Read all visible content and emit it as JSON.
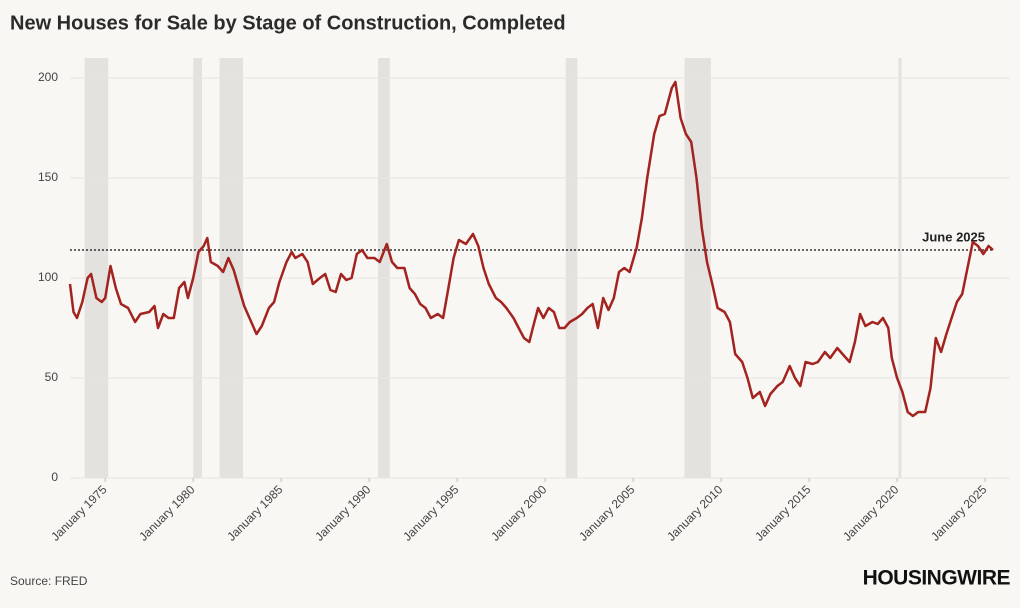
{
  "chart_data": {
    "type": "line",
    "title": "New Houses for Sale by Stage of Construction, Completed",
    "source": "Source: FRED",
    "logo": "HOUSINGWIRE",
    "color": "#a3231f",
    "grid": true,
    "shade_color": "#e4e2df",
    "xlim": [
      1973,
      2025.45
    ],
    "ylim": [
      0,
      210
    ],
    "yticks": [
      0,
      50,
      100,
      150,
      200
    ],
    "xticks": [
      {
        "value": 1975,
        "label": "January 1975"
      },
      {
        "value": 1980,
        "label": "January 1980"
      },
      {
        "value": 1985,
        "label": "January 1985"
      },
      {
        "value": 1990,
        "label": "January 1990"
      },
      {
        "value": 1995,
        "label": "January 1995"
      },
      {
        "value": 2000,
        "label": "January 2000"
      },
      {
        "value": 2005,
        "label": "January 2005"
      },
      {
        "value": 2010,
        "label": "January 2010"
      },
      {
        "value": 2015,
        "label": "January 2015"
      },
      {
        "value": 2020,
        "label": "January 2020"
      },
      {
        "value": 2025,
        "label": "January 2025"
      }
    ],
    "recessions": [
      [
        1973.83,
        1975.17
      ],
      [
        1980.0,
        1980.5
      ],
      [
        1981.5,
        1982.83
      ],
      [
        1990.5,
        1991.17
      ],
      [
        2001.17,
        2001.83
      ],
      [
        2007.92,
        2009.42
      ],
      [
        2020.08,
        2020.25
      ]
    ],
    "reference_line": {
      "value": 114,
      "label": "June 2025"
    },
    "x": [
      1973.0,
      1973.2,
      1973.4,
      1973.7,
      1974.0,
      1974.2,
      1974.5,
      1974.8,
      1975.0,
      1975.3,
      1975.6,
      1975.9,
      1976.3,
      1976.7,
      1977.0,
      1977.5,
      1977.8,
      1978.0,
      1978.3,
      1978.6,
      1978.9,
      1979.2,
      1979.5,
      1979.7,
      1980.0,
      1980.3,
      1980.6,
      1980.8,
      1981.0,
      1981.4,
      1981.7,
      1982.0,
      1982.3,
      1982.6,
      1982.9,
      1983.2,
      1983.6,
      1983.9,
      1984.3,
      1984.6,
      1984.9,
      1985.3,
      1985.6,
      1985.8,
      1986.2,
      1986.5,
      1986.8,
      1987.2,
      1987.5,
      1987.8,
      1988.1,
      1988.4,
      1988.7,
      1989.0,
      1989.3,
      1989.6,
      1989.9,
      1990.3,
      1990.6,
      1991.0,
      1991.3,
      1991.6,
      1992.0,
      1992.3,
      1992.6,
      1992.9,
      1993.2,
      1993.5,
      1993.9,
      1994.2,
      1994.5,
      1994.8,
      1995.1,
      1995.5,
      1995.9,
      1996.2,
      1996.5,
      1996.8,
      1997.2,
      1997.5,
      1997.8,
      1998.2,
      1998.5,
      1998.8,
      1999.1,
      1999.3,
      1999.6,
      1999.9,
      2000.2,
      2000.5,
      2000.8,
      2001.1,
      2001.4,
      2001.8,
      2002.1,
      2002.4,
      2002.7,
      2003.0,
      2003.3,
      2003.6,
      2003.9,
      2004.2,
      2004.5,
      2004.8,
      2005.2,
      2005.5,
      2005.8,
      2006.2,
      2006.5,
      2006.8,
      2007.2,
      2007.4,
      2007.7,
      2008.0,
      2008.3,
      2008.6,
      2008.9,
      2009.2,
      2009.5,
      2009.8,
      2010.2,
      2010.5,
      2010.8,
      2011.2,
      2011.5,
      2011.8,
      2012.2,
      2012.5,
      2012.8,
      2013.2,
      2013.5,
      2013.9,
      2014.2,
      2014.5,
      2014.8,
      2015.2,
      2015.5,
      2015.9,
      2016.2,
      2016.6,
      2016.9,
      2017.3,
      2017.6,
      2017.9,
      2018.2,
      2018.6,
      2018.9,
      2019.2,
      2019.5,
      2019.7,
      2020.0,
      2020.3,
      2020.6,
      2020.9,
      2021.2,
      2021.6,
      2021.9,
      2022.2,
      2022.5,
      2022.8,
      2023.1,
      2023.4,
      2023.7,
      2024.0,
      2024.3,
      2024.6,
      2024.9,
      2025.2,
      2025.45
    ],
    "values": [
      97,
      83,
      80,
      88,
      100,
      102,
      90,
      88,
      90,
      106,
      95,
      87,
      85,
      78,
      82,
      83,
      86,
      75,
      82,
      80,
      80,
      95,
      98,
      90,
      100,
      113,
      116,
      120,
      108,
      106,
      103,
      110,
      104,
      95,
      86,
      80,
      72,
      76,
      85,
      88,
      98,
      108,
      113,
      110,
      112,
      108,
      97,
      100,
      102,
      94,
      93,
      102,
      99,
      100,
      112,
      114,
      110,
      110,
      108,
      117,
      108,
      105,
      105,
      95,
      92,
      87,
      85,
      80,
      82,
      80,
      95,
      110,
      119,
      117,
      122,
      116,
      105,
      97,
      90,
      88,
      85,
      80,
      75,
      70,
      68,
      75,
      85,
      80,
      85,
      83,
      75,
      75,
      78,
      80,
      82,
      85,
      87,
      75,
      90,
      84,
      90,
      103,
      105,
      103,
      115,
      130,
      150,
      172,
      181,
      182,
      195,
      198,
      180,
      172,
      168,
      150,
      125,
      108,
      97,
      85,
      83,
      78,
      62,
      58,
      50,
      40,
      43,
      36,
      42,
      46,
      48,
      56,
      50,
      46,
      58,
      57,
      58,
      63,
      60,
      65,
      62,
      58,
      68,
      82,
      76,
      78,
      77,
      80,
      75,
      60,
      50,
      43,
      33,
      31,
      33,
      33,
      45,
      70,
      63,
      72,
      80,
      88,
      92,
      105,
      118,
      116,
      112,
      116,
      114
    ]
  }
}
